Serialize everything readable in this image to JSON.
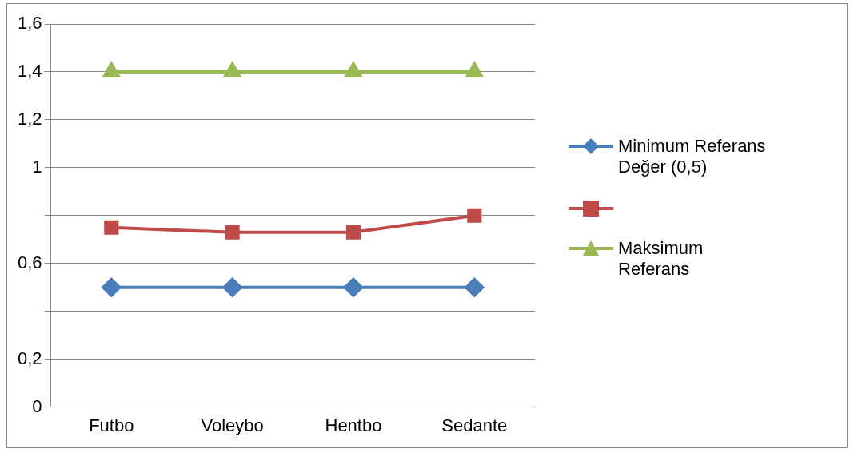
{
  "chart_data": {
    "type": "line",
    "categories": [
      "Futbo",
      "Voleybo",
      "Hentbo",
      "Sedante"
    ],
    "series": [
      {
        "name": "Minimum Referans Değer (0,5)",
        "color": "#4a7ebb",
        "values": [
          0.5,
          0.5,
          0.5,
          0.5
        ],
        "marker": "diamond"
      },
      {
        "color": "#be4b48",
        "values": [
          0.75,
          0.73,
          0.73,
          0.8
        ],
        "marker": "square"
      },
      {
        "name": "Maksimum Referans",
        "color": "#98b954",
        "values": [
          1.4,
          1.4,
          1.4,
          1.4
        ],
        "marker": "triangle"
      }
    ],
    "ylim": [
      0,
      1.6
    ],
    "yticks": [
      {
        "value": 0,
        "label": "0"
      },
      {
        "value": 0.2,
        "label": "0,2"
      },
      {
        "value": 0.4,
        "label": null
      },
      {
        "value": 0.6,
        "label": "0,6"
      },
      {
        "value": 0.8,
        "label": null
      },
      {
        "value": 1,
        "label": "1"
      },
      {
        "value": 1.2,
        "label": "1,2"
      },
      {
        "value": 1.4,
        "label": "1,4"
      },
      {
        "value": 1.6,
        "label": "1,6"
      }
    ],
    "grid": "y",
    "legend": "right"
  }
}
